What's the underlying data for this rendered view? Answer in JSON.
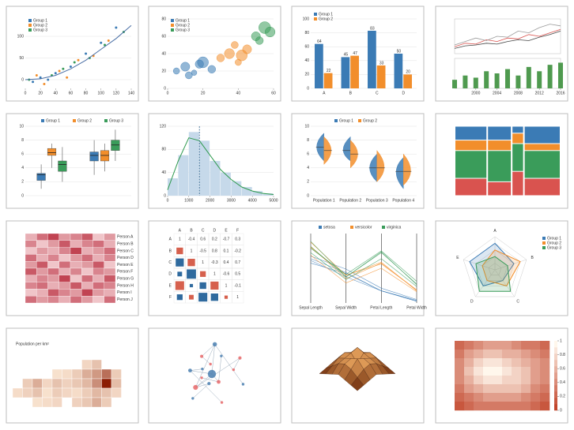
{
  "chart_data": [
    {
      "type": "scatter",
      "xlim": [
        0,
        140
      ],
      "ylim": [
        -20,
        140
      ],
      "xticks": [
        0,
        20,
        40,
        60,
        80,
        100,
        120,
        140
      ],
      "yticks": [
        0,
        50,
        100
      ],
      "series": [
        {
          "name": "Group 1",
          "color": "#3b7bb5",
          "x": [
            10,
            20,
            30,
            40,
            60,
            80,
            100,
            120
          ],
          "y": [
            -5,
            5,
            0,
            15,
            30,
            60,
            85,
            120
          ]
        },
        {
          "name": "Group 2",
          "color": "#f28e2b",
          "x": [
            15,
            25,
            45,
            55,
            70,
            90,
            110
          ],
          "y": [
            10,
            -10,
            20,
            5,
            45,
            55,
            90
          ]
        },
        {
          "name": "Group 3",
          "color": "#3a9c5a",
          "x": [
            5,
            35,
            50,
            65,
            85,
            105,
            130
          ],
          "y": [
            0,
            10,
            25,
            40,
            50,
            80,
            110
          ]
        }
      ],
      "trend": {
        "x": [
          0,
          20,
          40,
          60,
          80,
          100,
          120,
          140
        ],
        "y": [
          0,
          2,
          10,
          25,
          45,
          70,
          95,
          125
        ]
      }
    },
    {
      "type": "bubble",
      "xlim": [
        0,
        60
      ],
      "ylim": [
        0,
        80
      ],
      "xticks": [
        0,
        20,
        40,
        60
      ],
      "yticks": [
        0,
        20,
        40,
        60,
        80
      ],
      "series": [
        {
          "name": "Group 1",
          "color": "#3b7bb5",
          "x": [
            5,
            10,
            15,
            20,
            25,
            12,
            18
          ],
          "y": [
            20,
            25,
            18,
            30,
            22,
            15,
            28
          ],
          "size": [
            20,
            40,
            15,
            60,
            30,
            25,
            35
          ]
        },
        {
          "name": "Group 2",
          "color": "#f28e2b",
          "x": [
            30,
            35,
            40,
            45,
            38,
            42
          ],
          "y": [
            35,
            40,
            30,
            45,
            50,
            38
          ],
          "size": [
            30,
            50,
            20,
            40,
            25,
            60
          ]
        },
        {
          "name": "Group 3",
          "color": "#3a9c5a",
          "x": [
            50,
            55,
            52,
            58
          ],
          "y": [
            60,
            70,
            55,
            65
          ],
          "size": [
            40,
            70,
            30,
            50
          ]
        }
      ]
    },
    {
      "type": "bar",
      "categories": [
        "A",
        "B",
        "C",
        "D"
      ],
      "ylim": [
        0,
        100
      ],
      "yticks": [
        0,
        20,
        40,
        60,
        80,
        100
      ],
      "series": [
        {
          "name": "Group 1",
          "color": "#3b7bb5",
          "values": [
            64,
            45,
            83,
            50
          ]
        },
        {
          "name": "Group 2",
          "color": "#f28e2b",
          "values": [
            22,
            47,
            33,
            20
          ]
        }
      ]
    },
    {
      "type": "stock",
      "x": [
        1996,
        1998,
        2000,
        2002,
        2004,
        2006,
        2008,
        2010,
        2012,
        2014,
        2016
      ],
      "xlim": [
        1996,
        2016
      ],
      "xticks": [
        2000,
        2004,
        2008,
        2012,
        2016
      ],
      "ylim": [
        0,
        200
      ],
      "y2lim": [
        0,
        70
      ],
      "series": [
        {
          "color": "#d9534f",
          "values": [
            40,
            60,
            55,
            80,
            70,
            90,
            85,
            110,
            100,
            120,
            140
          ]
        },
        {
          "color": "#999999",
          "values": [
            50,
            70,
            90,
            75,
            100,
            95,
            130,
            120,
            150,
            170,
            160
          ]
        },
        {
          "color": "#444444",
          "values": [
            30,
            45,
            50,
            60,
            55,
            70,
            80,
            75,
            95,
            110,
            130
          ]
        }
      ],
      "volume": [
        20,
        30,
        25,
        40,
        35,
        45,
        30,
        50,
        40,
        55,
        60
      ],
      "volume_color": "#4f9a4f"
    },
    {
      "type": "box",
      "ylim": [
        0,
        10
      ],
      "yticks": [
        0,
        2,
        4,
        6,
        8,
        10
      ],
      "series": [
        {
          "name": "Group 1",
          "color": "#3b7bb5",
          "stats": [
            [
              1,
              2.2,
              3,
              3.2,
              4.5
            ],
            [
              3,
              5,
              5.8,
              6.3,
              8
            ]
          ]
        },
        {
          "name": "Group 2",
          "color": "#f28e2b",
          "stats": [
            [
              4,
              5.8,
              6.2,
              6.8,
              7.5
            ],
            [
              3.5,
              5,
              5.8,
              6.5,
              7.5
            ]
          ]
        },
        {
          "name": "Group 3",
          "color": "#3a9c5a",
          "stats": [
            [
              2,
              3.5,
              4.5,
              5,
              7
            ],
            [
              5,
              6.5,
              7.3,
              8,
              9.5
            ]
          ]
        }
      ]
    },
    {
      "type": "histogram",
      "bins": [
        0,
        500,
        1000,
        1500,
        2000,
        2500,
        3000,
        3500,
        4000,
        4500,
        5000
      ],
      "counts": [
        30,
        70,
        110,
        95,
        60,
        40,
        25,
        15,
        8,
        4
      ],
      "color": "#c6d9ea",
      "kde": {
        "x": [
          0,
          500,
          1000,
          1500,
          2000,
          2500,
          3000,
          3500,
          4000,
          4500,
          5000
        ],
        "y": [
          10,
          60,
          100,
          95,
          70,
          45,
          28,
          15,
          8,
          4,
          2
        ]
      },
      "mean": 1500,
      "xlim": [
        0,
        5000
      ],
      "ylim": [
        0,
        120
      ],
      "xticks": [
        0,
        1000,
        2000,
        3000,
        4000,
        5000
      ],
      "yticks": [
        0,
        40,
        80,
        120
      ]
    },
    {
      "type": "violin",
      "categories": [
        "Population 1",
        "Population 2",
        "Population 3",
        "Population 4"
      ],
      "ylim": [
        0,
        10
      ],
      "yticks": [
        0,
        2,
        4,
        6,
        8,
        10
      ],
      "series": [
        {
          "name": "Group 1",
          "color": "#3b7bb5",
          "stats": [
            [
              5,
              7,
              9
            ],
            [
              5,
              6.5,
              8.5
            ],
            [
              2,
              4,
              6
            ],
            [
              1,
              3.5,
              5.5
            ]
          ]
        },
        {
          "name": "Group 2",
          "color": "#f28e2b",
          "stats": [
            [
              4.5,
              6.5,
              8.5
            ],
            [
              4,
              6,
              8
            ],
            [
              2,
              4,
              6.5
            ],
            [
              1.5,
              3.5,
              6
            ]
          ]
        }
      ]
    },
    {
      "type": "mosaic",
      "widths": [
        40,
        30,
        15,
        45
      ],
      "ylim": [
        0,
        100
      ],
      "series": [
        {
          "color": "#d9534f",
          "values": [
            25,
            20,
            35,
            25
          ]
        },
        {
          "color": "#3a9c5a",
          "values": [
            40,
            45,
            40,
            40
          ]
        },
        {
          "color": "#f28e2b",
          "values": [
            15,
            15,
            15,
            10
          ]
        },
        {
          "color": "#3b7bb5",
          "values": [
            20,
            20,
            10,
            25
          ]
        }
      ]
    },
    {
      "type": "heatmap",
      "rows": [
        "Person A",
        "Person B",
        "Person C",
        "Person D",
        "Person E",
        "Person F",
        "Person G",
        "Person H",
        "Person I",
        "Person J"
      ],
      "zlim": [
        0,
        1
      ],
      "matrix": [
        [
          0.3,
          0.6,
          0.8,
          0.4,
          0.5,
          0.7,
          0.2,
          0.4
        ],
        [
          0.5,
          0.2,
          0.4,
          0.7,
          0.3,
          0.5,
          0.6,
          0.3
        ],
        [
          0.2,
          0.4,
          0.3,
          0.5,
          0.8,
          0.3,
          0.4,
          0.6
        ],
        [
          0.6,
          0.3,
          0.5,
          0.2,
          0.4,
          0.6,
          0.3,
          0.5
        ],
        [
          0.4,
          0.7,
          0.2,
          0.6,
          0.3,
          0.4,
          0.7,
          0.2
        ],
        [
          0.7,
          0.4,
          0.6,
          0.3,
          0.5,
          0.2,
          0.5,
          0.4
        ],
        [
          0.3,
          0.5,
          0.4,
          0.8,
          0.2,
          0.6,
          0.3,
          0.7
        ],
        [
          0.5,
          0.6,
          0.3,
          0.4,
          0.7,
          0.3,
          0.6,
          0.5
        ],
        [
          0.2,
          0.3,
          0.7,
          0.5,
          0.4,
          0.8,
          0.4,
          0.3
        ],
        [
          0.6,
          0.4,
          0.5,
          0.3,
          0.6,
          0.4,
          0.2,
          0.6
        ]
      ]
    },
    {
      "type": "corr",
      "labels": [
        "A",
        "B",
        "C",
        "D",
        "E",
        "F"
      ],
      "matrix": [
        [
          1,
          -0.4,
          0.6,
          0.2,
          -0.7,
          0.3
        ],
        [
          -0.4,
          1,
          -0.5,
          0.8,
          0.1,
          -0.2
        ],
        [
          0.6,
          -0.5,
          1,
          -0.3,
          0.4,
          0.7
        ],
        [
          0.2,
          0.8,
          -0.3,
          1,
          -0.6,
          0.5
        ],
        [
          -0.7,
          0.1,
          0.4,
          -0.6,
          1,
          -0.1
        ],
        [
          0.3,
          -0.2,
          0.7,
          0.5,
          -0.1,
          1
        ]
      ]
    },
    {
      "type": "parallel",
      "axes": [
        "Sepal Length",
        "Sepal Width",
        "Petal Length",
        "Petal Width"
      ],
      "ylim": [
        0,
        8
      ],
      "series": [
        {
          "name": "setosa",
          "color": "#3b7bb5",
          "lines": [
            [
              5.1,
              3.5,
              1.4,
              0.2
            ],
            [
              4.9,
              3.0,
              1.4,
              0.2
            ],
            [
              5.4,
              3.9,
              1.7,
              0.4
            ],
            [
              4.6,
              3.4,
              1.4,
              0.3
            ]
          ]
        },
        {
          "name": "versicolor",
          "color": "#f28e2b",
          "lines": [
            [
              7.0,
              3.2,
              4.7,
              1.4
            ],
            [
              6.4,
              3.2,
              4.5,
              1.5
            ],
            [
              5.5,
              2.3,
              4.0,
              1.3
            ],
            [
              6.5,
              2.8,
              4.6,
              1.5
            ]
          ]
        },
        {
          "name": "virginica",
          "color": "#3a9c5a",
          "lines": [
            [
              6.3,
              3.3,
              6.0,
              2.5
            ],
            [
              5.8,
              2.7,
              5.1,
              1.9
            ],
            [
              7.1,
              3.0,
              5.9,
              2.1
            ],
            [
              6.5,
              3.0,
              5.8,
              2.2
            ]
          ]
        }
      ]
    },
    {
      "type": "radar",
      "axes": [
        "A",
        "B",
        "C",
        "D",
        "E"
      ],
      "rlim": [
        0,
        5
      ],
      "rticks": [
        1,
        2,
        3,
        4,
        5
      ],
      "series": [
        {
          "name": "Group 1",
          "color": "#3b7bb5",
          "values": [
            4,
            3,
            2,
            3,
            4
          ]
        },
        {
          "name": "Group 2",
          "color": "#f28e2b",
          "values": [
            3,
            4,
            3,
            2,
            2
          ]
        },
        {
          "name": "Group 3",
          "color": "#3a9c5a",
          "values": [
            2,
            2,
            4,
            4,
            3
          ]
        }
      ]
    },
    {
      "type": "map",
      "title": "Population per km²",
      "zlim": [
        0,
        200
      ],
      "grid": [
        [
          null,
          null,
          null,
          null,
          null,
          null,
          null,
          20,
          40,
          null,
          null,
          null
        ],
        [
          null,
          null,
          null,
          null,
          10,
          15,
          30,
          60,
          80,
          120,
          30,
          null
        ],
        [
          null,
          30,
          60,
          20,
          40,
          25,
          35,
          50,
          90,
          200,
          45,
          null
        ],
        [
          15,
          25,
          40,
          10,
          30,
          20,
          15,
          30,
          50,
          40,
          20,
          null
        ],
        [
          null,
          null,
          10,
          15,
          20,
          null,
          25,
          35,
          60,
          30,
          null,
          null
        ]
      ]
    },
    {
      "type": "network",
      "nodes": [
        12,
        6,
        5,
        4,
        4,
        3,
        3,
        3,
        2,
        2,
        2,
        2,
        2,
        2,
        2,
        2
      ],
      "links": [
        [
          0,
          1
        ],
        [
          0,
          2
        ],
        [
          0,
          3
        ],
        [
          0,
          4
        ],
        [
          1,
          5
        ],
        [
          1,
          6
        ],
        [
          2,
          7
        ],
        [
          2,
          8
        ],
        [
          3,
          9
        ],
        [
          3,
          10
        ],
        [
          4,
          11
        ],
        [
          4,
          12
        ],
        [
          5,
          13
        ],
        [
          6,
          14
        ],
        [
          7,
          15
        ],
        [
          1,
          2
        ]
      ]
    },
    {
      "type": "surface",
      "zlim": [
        0,
        8
      ],
      "z": [
        [
          0,
          1,
          2,
          3,
          2,
          1,
          0
        ],
        [
          1,
          3,
          5,
          6,
          5,
          3,
          1
        ],
        [
          2,
          5,
          8,
          7,
          6,
          5,
          2
        ],
        [
          3,
          6,
          7,
          4,
          7,
          6,
          3
        ],
        [
          2,
          5,
          6,
          7,
          8,
          5,
          2
        ],
        [
          1,
          3,
          5,
          6,
          5,
          3,
          1
        ],
        [
          0,
          1,
          2,
          3,
          2,
          1,
          0
        ]
      ]
    },
    {
      "type": "contour",
      "zlim": [
        0,
        1
      ],
      "zticks": [
        0,
        0.2,
        0.4,
        0.6,
        0.8,
        1
      ],
      "z": [
        [
          0.2,
          0.3,
          0.4,
          0.5,
          0.5,
          0.5,
          0.4,
          0.3,
          0.3,
          0.2
        ],
        [
          0.3,
          0.5,
          0.6,
          0.7,
          0.7,
          0.6,
          0.6,
          0.5,
          0.4,
          0.3
        ],
        [
          0.4,
          0.6,
          0.8,
          0.9,
          0.9,
          0.8,
          0.7,
          0.6,
          0.5,
          0.4
        ],
        [
          0.4,
          0.7,
          0.9,
          1.0,
          1.0,
          0.9,
          0.8,
          0.7,
          0.5,
          0.4
        ],
        [
          0.4,
          0.6,
          0.8,
          0.9,
          0.9,
          0.8,
          0.8,
          0.7,
          0.5,
          0.4
        ],
        [
          0.3,
          0.5,
          0.6,
          0.7,
          0.7,
          0.7,
          0.7,
          0.6,
          0.4,
          0.3
        ],
        [
          0.2,
          0.3,
          0.4,
          0.5,
          0.5,
          0.5,
          0.5,
          0.4,
          0.3,
          0.2
        ],
        [
          0.1,
          0.2,
          0.3,
          0.3,
          0.3,
          0.3,
          0.3,
          0.3,
          0.2,
          0.1
        ]
      ]
    }
  ]
}
